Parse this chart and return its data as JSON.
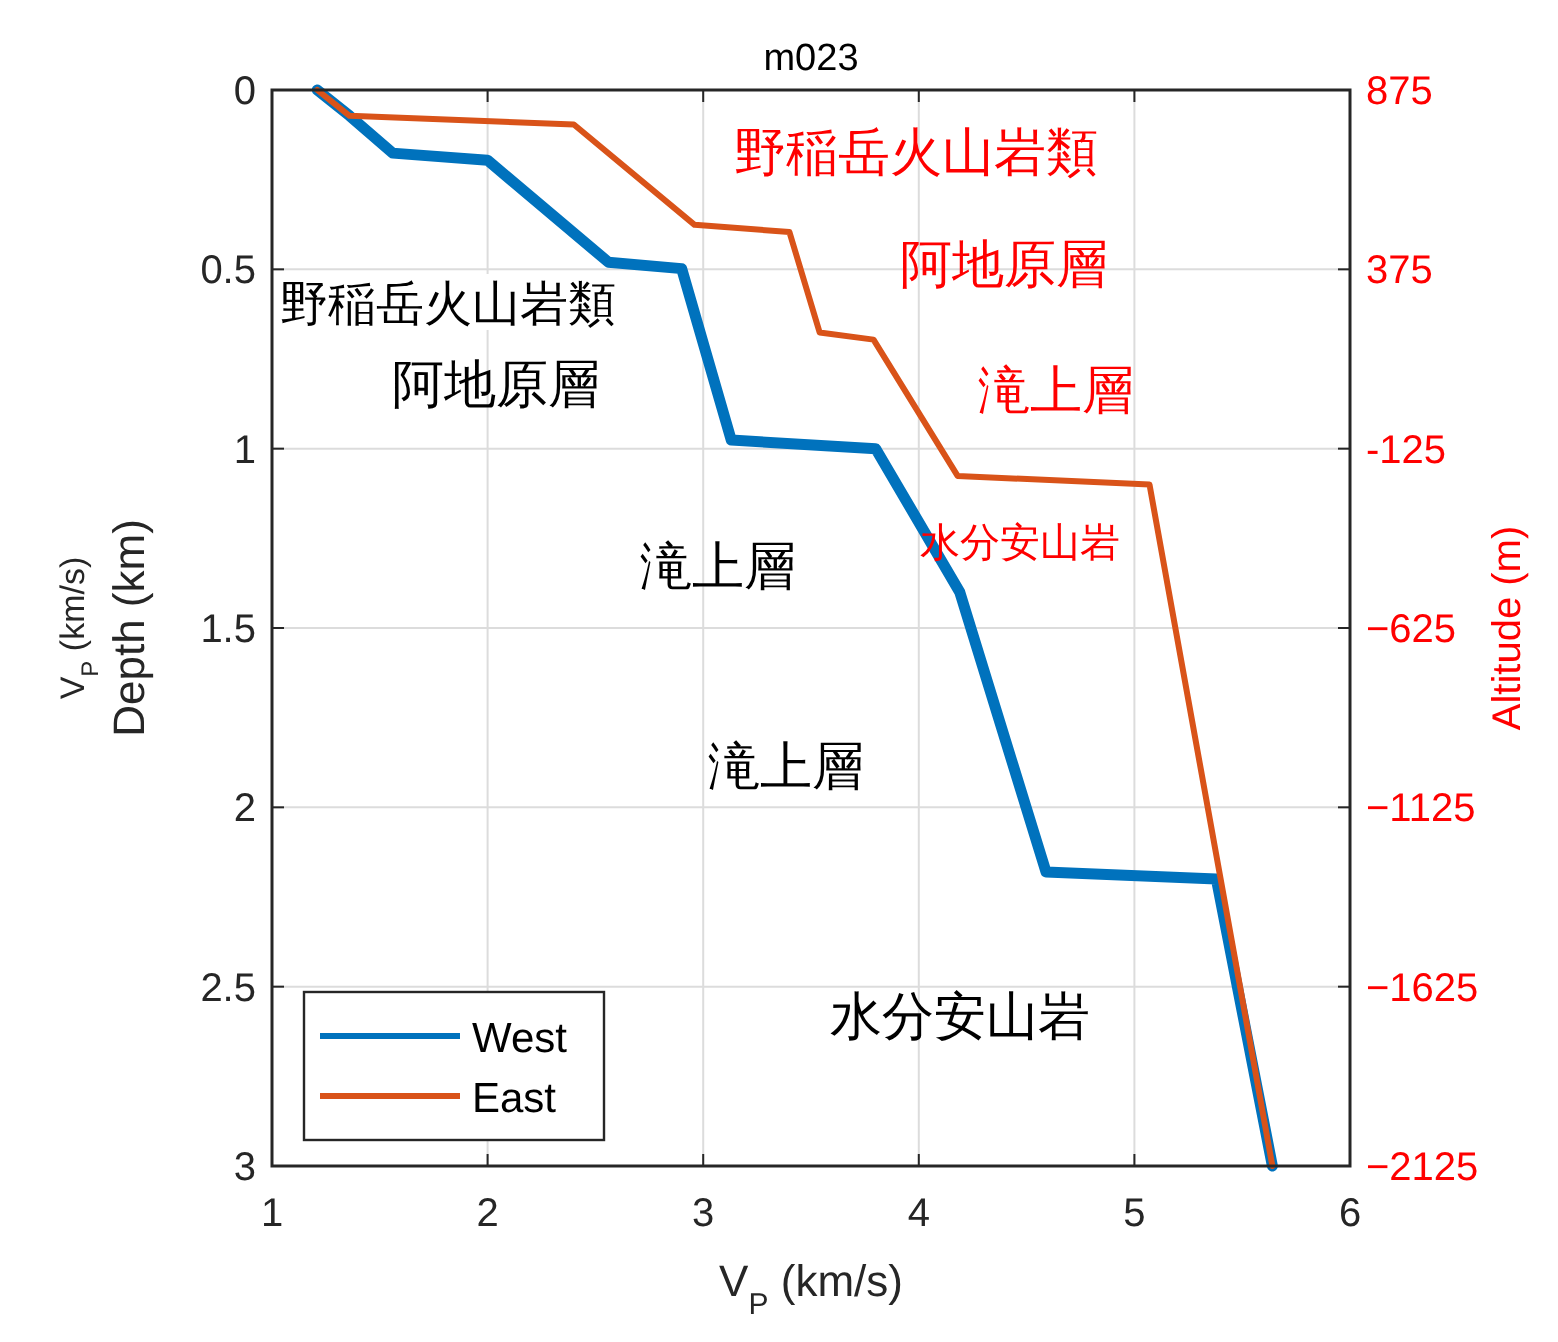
{
  "chart_data": {
    "type": "line",
    "title": "m023",
    "xlabel": "V$_{P}$ (km/s)",
    "ylabel": "V$_{P}$ (km/s)\nDepth (km)",
    "y2label": "Altitude (m)",
    "xlim": [
      1,
      6
    ],
    "xticks": [
      1,
      2,
      3,
      4,
      5,
      6
    ],
    "ylim": [
      3,
      0
    ],
    "yticks": [
      0,
      0.5,
      1,
      1.5,
      2,
      2.5,
      3
    ],
    "y2lim": [
      -2125,
      875
    ],
    "y2ticks": [
      875,
      375,
      -125,
      {
        "value": -625,
        "label": "−625"
      },
      {
        "value": -1125,
        "label": "−1125"
      },
      {
        "value": -1625,
        "label": "−1625"
      },
      {
        "value": -2125,
        "label": "−2125"
      }
    ],
    "grid": true,
    "legend": "bottom left",
    "line_style": "solid",
    "marker": "none",
    "series": [
      {
        "name": "West",
        "color": "#0072bd",
        "x": [
          1.21,
          1.36,
          1.56,
          2.0,
          2.56,
          2.9,
          3.13,
          3.8,
          4.19,
          4.59,
          5.38,
          5.64
        ],
        "values": [
          0,
          0.072,
          0.176,
          0.196,
          0.48,
          0.498,
          0.976,
          1.0,
          1.4,
          2.18,
          2.2,
          3.0
        ]
      },
      {
        "name": "East",
        "color": "#d95319",
        "x": [
          1.21,
          1.36,
          2.4,
          2.96,
          3.4,
          3.54,
          3.79,
          4.18,
          5.07,
          5.64
        ],
        "values": [
          0,
          0.072,
          0.096,
          0.376,
          0.396,
          0.676,
          0.696,
          1.076,
          1.1,
          3.0
        ]
      }
    ],
    "annotations": [
      "野稲岳火山岩類",
      "阿地原層",
      "滝上層",
      "滝上層",
      "水分安山岩",
      "野稲岳火山岩類",
      "阿地原層",
      "滝上層",
      "水分安山岩"
    ]
  }
}
